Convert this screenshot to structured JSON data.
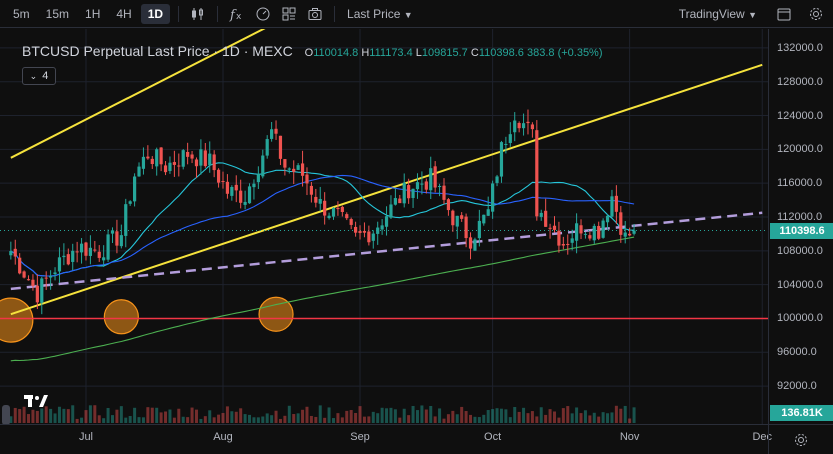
{
  "toolbar": {
    "timeframes": [
      "5m",
      "15m",
      "1H",
      "4H",
      "1D"
    ],
    "active_timeframe": "1D",
    "price_type": "Last Price",
    "brand": "TradingView"
  },
  "legend": {
    "title": "BTCUSD Perpetual Last Price · 1D · MEXC",
    "o_label": "O",
    "o": "110014.8",
    "h_label": "H",
    "h": "111173.4",
    "l_label": "L",
    "l": "109815.7",
    "c_label": "C",
    "c": "110398.6",
    "change": "383.8",
    "change_pct": "(+0.35%)",
    "indicators_count": "4"
  },
  "price_scale": {
    "ticks": [
      "132000.0",
      "128000.0",
      "124000.0",
      "120000.0",
      "116000.0",
      "112000.0",
      "108000.0",
      "104000.0",
      "100000.0",
      "96000.0",
      "92000.0"
    ],
    "last_price_tag": "110398.6",
    "volume_tag": "136.81K"
  },
  "time_scale": {
    "ticks": [
      "Jul",
      "Aug",
      "Sep",
      "Oct",
      "Nov",
      "Dec"
    ]
  },
  "colors": {
    "up": "#26a69a",
    "down": "#ef5350",
    "trend": "#f5e23c",
    "support": "#f23645",
    "dashed": "#b39ddb",
    "ma_fast": "#26c6da",
    "ma_mid": "#2962ff",
    "ma_slow": "#4caf50",
    "circle": "#f7931a"
  },
  "chart_data": {
    "type": "candlestick",
    "symbol": "BTCUSD Perpetual",
    "interval": "1D",
    "ylim": [
      90000,
      134000
    ],
    "last": {
      "open": 110014.8,
      "high": 111173.4,
      "low": 109815.7,
      "close": 110398.6
    },
    "anchors": [
      {
        "d": 0,
        "v": 108000
      },
      {
        "d": 6,
        "v": 103000
      },
      {
        "d": 10,
        "v": 106000
      },
      {
        "d": 15,
        "v": 108500
      },
      {
        "d": 20,
        "v": 108000
      },
      {
        "d": 25,
        "v": 110000
      },
      {
        "d": 28,
        "v": 117000
      },
      {
        "d": 31,
        "v": 119500
      },
      {
        "d": 35,
        "v": 118000
      },
      {
        "d": 40,
        "v": 119500
      },
      {
        "d": 45,
        "v": 118500
      },
      {
        "d": 49,
        "v": 115000
      },
      {
        "d": 53,
        "v": 114500
      },
      {
        "d": 57,
        "v": 119500
      },
      {
        "d": 59,
        "v": 122000
      },
      {
        "d": 62,
        "v": 118000
      },
      {
        "d": 66,
        "v": 117000
      },
      {
        "d": 70,
        "v": 113500
      },
      {
        "d": 74,
        "v": 112000
      },
      {
        "d": 78,
        "v": 109500
      },
      {
        "d": 82,
        "v": 110500
      },
      {
        "d": 86,
        "v": 113000
      },
      {
        "d": 90,
        "v": 115500
      },
      {
        "d": 95,
        "v": 116500
      },
      {
        "d": 100,
        "v": 112000
      },
      {
        "d": 104,
        "v": 109500
      },
      {
        "d": 108,
        "v": 112500
      },
      {
        "d": 111,
        "v": 120000
      },
      {
        "d": 114,
        "v": 124500
      },
      {
        "d": 118,
        "v": 121500
      },
      {
        "d": 119,
        "v": 113000
      },
      {
        "d": 121,
        "v": 112000
      },
      {
        "d": 125,
        "v": 109000
      },
      {
        "d": 129,
        "v": 111000
      },
      {
        "d": 133,
        "v": 110500
      },
      {
        "d": 136,
        "v": 114500
      },
      {
        "d": 139,
        "v": 109500
      },
      {
        "d": 141,
        "v": 110398.6
      }
    ],
    "candle_count": 142,
    "start_offset_days": 2,
    "moving_averages": [
      {
        "color_key": "ma_fast",
        "period": 20
      },
      {
        "color_key": "ma_mid",
        "period": 50
      },
      {
        "color_key": "ma_slow",
        "period": 200
      }
    ],
    "horizontal_support": 100000,
    "trend_lines": [
      {
        "from": {
          "d": 0,
          "v": 119000
        },
        "to": {
          "d": 60,
          "v": 135000
        }
      },
      {
        "from": {
          "d": 0,
          "v": 100500
        },
        "to": {
          "d": 170,
          "v": 130000
        }
      }
    ],
    "dashed_line": {
      "from": {
        "d": 0,
        "v": 103500
      },
      "to": {
        "d": 170,
        "v": 112500
      }
    },
    "circles": [
      {
        "d": 0,
        "v": 99800,
        "r": 22
      },
      {
        "d": 25,
        "v": 100200,
        "r": 17
      },
      {
        "d": 60,
        "v": 100500,
        "r": 17
      }
    ],
    "months": [
      {
        "label": "Jul",
        "d": 17
      },
      {
        "label": "Aug",
        "d": 48
      },
      {
        "label": "Sep",
        "d": 79
      },
      {
        "label": "Oct",
        "d": 109
      },
      {
        "label": "Nov",
        "d": 140
      },
      {
        "label": "Dec",
        "d": 170
      }
    ]
  }
}
